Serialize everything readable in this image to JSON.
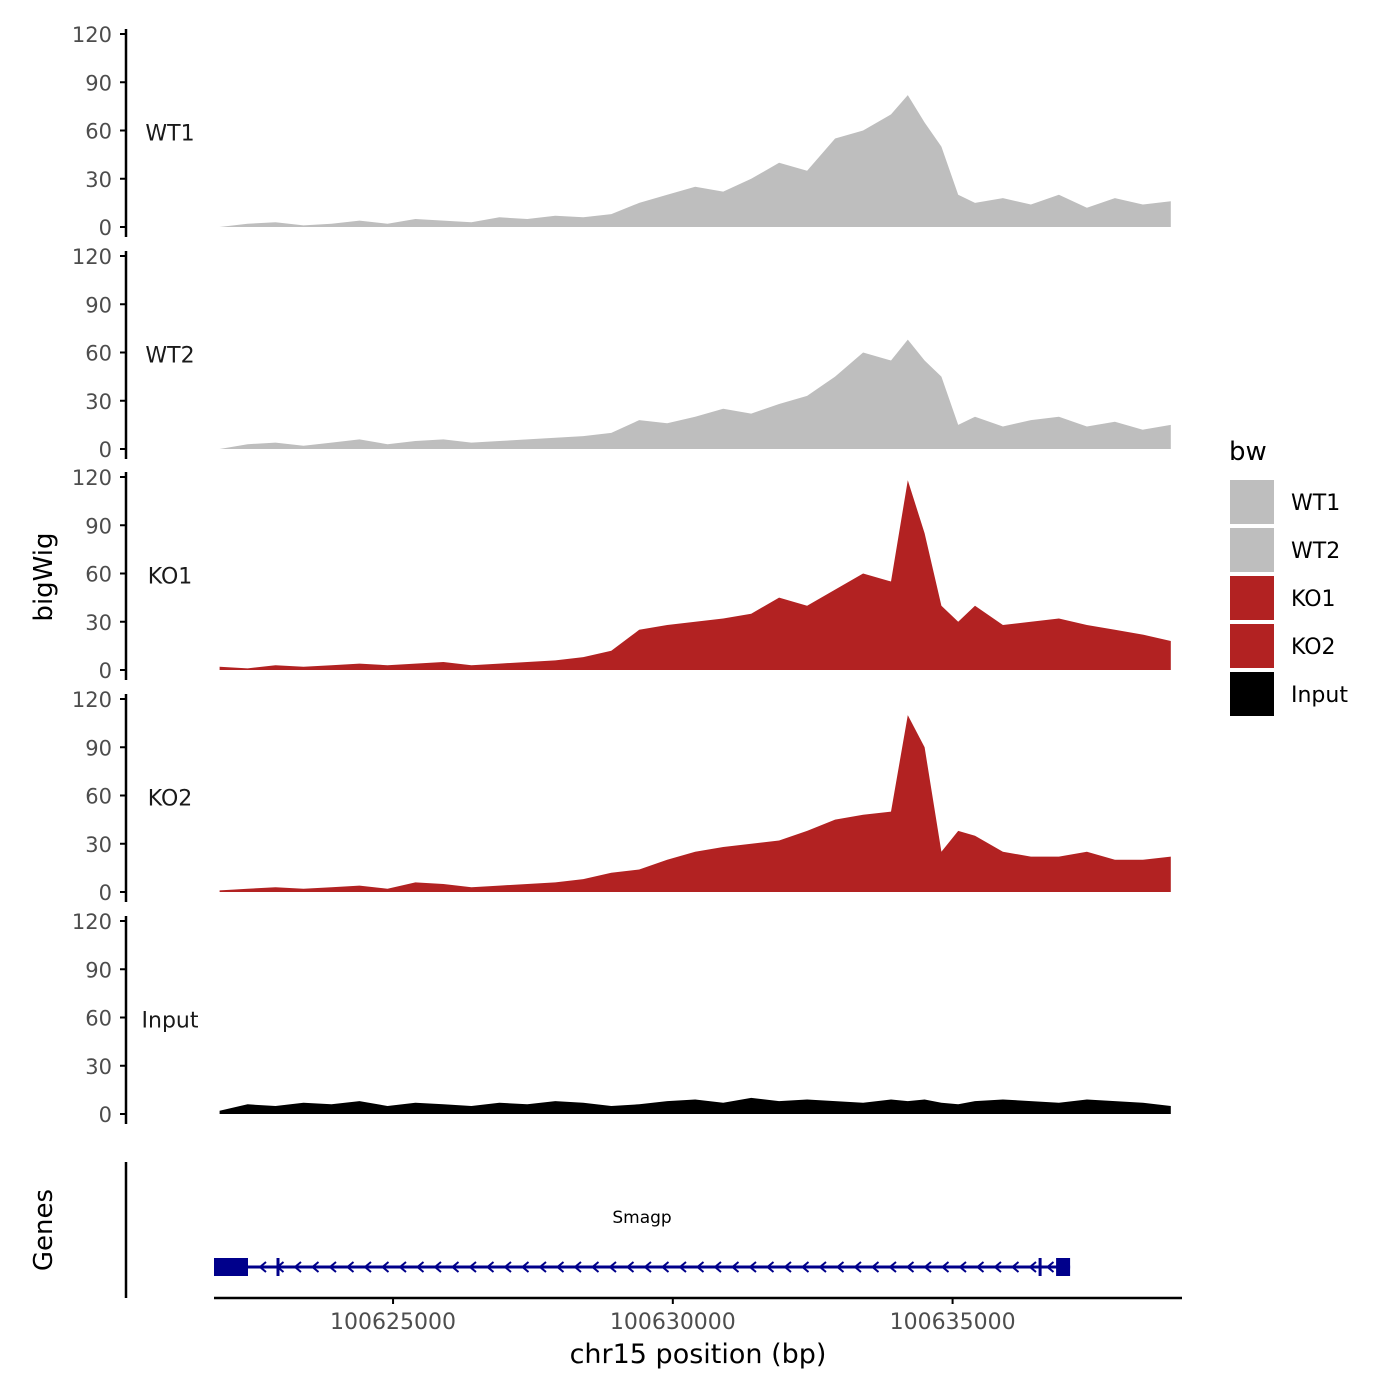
{
  "chart_data": {
    "type": "area",
    "title": "",
    "ylabel": "bigWig",
    "genes_label": "Genes",
    "xlabel": "chr15 position (bp)",
    "xlim": [
      100621800,
      100639100
    ],
    "x_ticks": [
      100625000,
      100630000,
      100635000
    ],
    "x_tick_labels": [
      "100625000",
      "100630000",
      "100635000"
    ],
    "ylim": [
      0,
      120
    ],
    "y_ticks": [
      0,
      30,
      60,
      90,
      120
    ],
    "y_tick_labels": [
      "0",
      "30",
      "60",
      "90",
      "120"
    ],
    "legend": {
      "title": "bw",
      "position": "right",
      "entries": [
        {
          "label": "WT1",
          "color": "#bebebe"
        },
        {
          "label": "WT2",
          "color": "#bebebe"
        },
        {
          "label": "KO1",
          "color": "#b22222"
        },
        {
          "label": "KO2",
          "color": "#b22222"
        },
        {
          "label": "Input",
          "color": "#000000"
        }
      ]
    },
    "x": [
      100621900,
      100622400,
      100622900,
      100623400,
      100623900,
      100624400,
      100624900,
      100625400,
      100625900,
      100626400,
      100626900,
      100627400,
      100627900,
      100628400,
      100628900,
      100629400,
      100629900,
      100630400,
      100630900,
      100631400,
      100631900,
      100632400,
      100632900,
      100633400,
      100633900,
      100634200,
      100634500,
      100634800,
      100635100,
      100635400,
      100635900,
      100636400,
      100636900,
      100637400,
      100637900,
      100638400,
      100638900
    ],
    "series": [
      {
        "name": "WT1",
        "color": "#bebebe",
        "values": [
          0,
          2,
          3,
          1,
          2,
          4,
          2,
          5,
          4,
          3,
          6,
          5,
          7,
          6,
          8,
          15,
          20,
          25,
          22,
          30,
          40,
          35,
          55,
          60,
          70,
          82,
          65,
          50,
          20,
          15,
          18,
          14,
          20,
          12,
          18,
          14,
          16
        ]
      },
      {
        "name": "WT2",
        "color": "#bebebe",
        "values": [
          0,
          3,
          4,
          2,
          4,
          6,
          3,
          5,
          6,
          4,
          5,
          6,
          7,
          8,
          10,
          18,
          16,
          20,
          25,
          22,
          28,
          33,
          45,
          60,
          55,
          68,
          55,
          45,
          15,
          20,
          14,
          18,
          20,
          14,
          17,
          12,
          15
        ]
      },
      {
        "name": "KO1",
        "color": "#b22222",
        "values": [
          2,
          1,
          3,
          2,
          3,
          4,
          3,
          4,
          5,
          3,
          4,
          5,
          6,
          8,
          12,
          25,
          28,
          30,
          32,
          35,
          45,
          40,
          50,
          60,
          55,
          118,
          85,
          40,
          30,
          40,
          28,
          30,
          32,
          28,
          25,
          22,
          18
        ]
      },
      {
        "name": "KO2",
        "color": "#b22222",
        "values": [
          1,
          2,
          3,
          2,
          3,
          4,
          2,
          6,
          5,
          3,
          4,
          5,
          6,
          8,
          12,
          14,
          20,
          25,
          28,
          30,
          32,
          38,
          45,
          48,
          50,
          110,
          90,
          25,
          38,
          35,
          25,
          22,
          22,
          25,
          20,
          20,
          22
        ]
      },
      {
        "name": "Input",
        "color": "#000000",
        "values": [
          2,
          6,
          5,
          7,
          6,
          8,
          5,
          7,
          6,
          5,
          7,
          6,
          8,
          7,
          5,
          6,
          8,
          9,
          7,
          10,
          8,
          9,
          8,
          7,
          9,
          8,
          9,
          7,
          6,
          8,
          9,
          8,
          7,
          9,
          8,
          7,
          5
        ]
      }
    ],
    "genes": [
      {
        "name": "Smagp",
        "start": 100621800,
        "end": 100637100,
        "strand": "-",
        "color": "#00008b"
      }
    ]
  }
}
